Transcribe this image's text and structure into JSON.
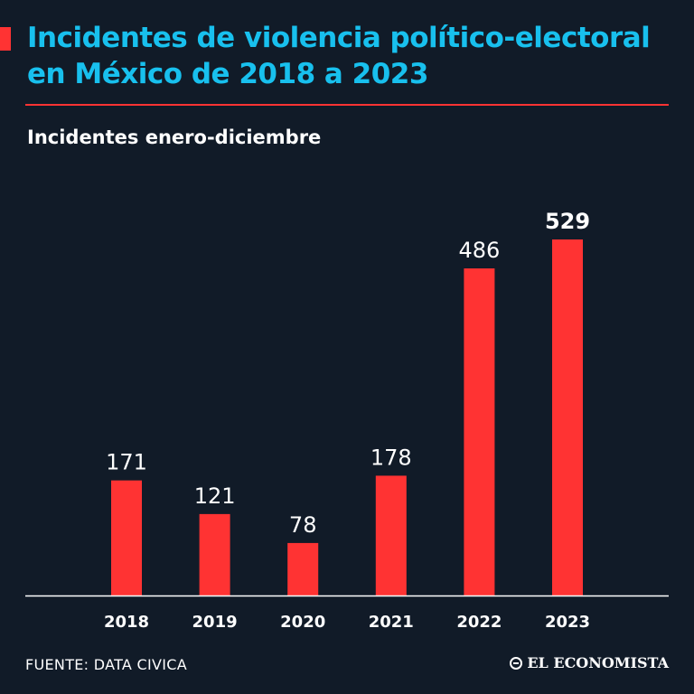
{
  "header": {
    "title": "Incidentes de violencia político-electoral en México de 2018 a 2023",
    "subtitle": "Incidentes enero-diciembre"
  },
  "footer": {
    "source": "FUENTE: DATA CIVICA",
    "brand": "EL ECONOMISTA"
  },
  "colors": {
    "background": "#111b28",
    "title": "#18c0ee",
    "bar": "#ff3333",
    "text": "#ffffff"
  },
  "chart_data": {
    "type": "bar",
    "title": "Incidentes de violencia político-electoral en México de 2018 a 2023",
    "subtitle": "Incidentes enero-diciembre",
    "xlabel": "",
    "ylabel": "",
    "categories": [
      "2018",
      "2019",
      "2020",
      "2021",
      "2022",
      "2023"
    ],
    "values": [
      171,
      121,
      78,
      178,
      486,
      529
    ],
    "highlight": "2023",
    "ylim": [
      0,
      529
    ]
  }
}
